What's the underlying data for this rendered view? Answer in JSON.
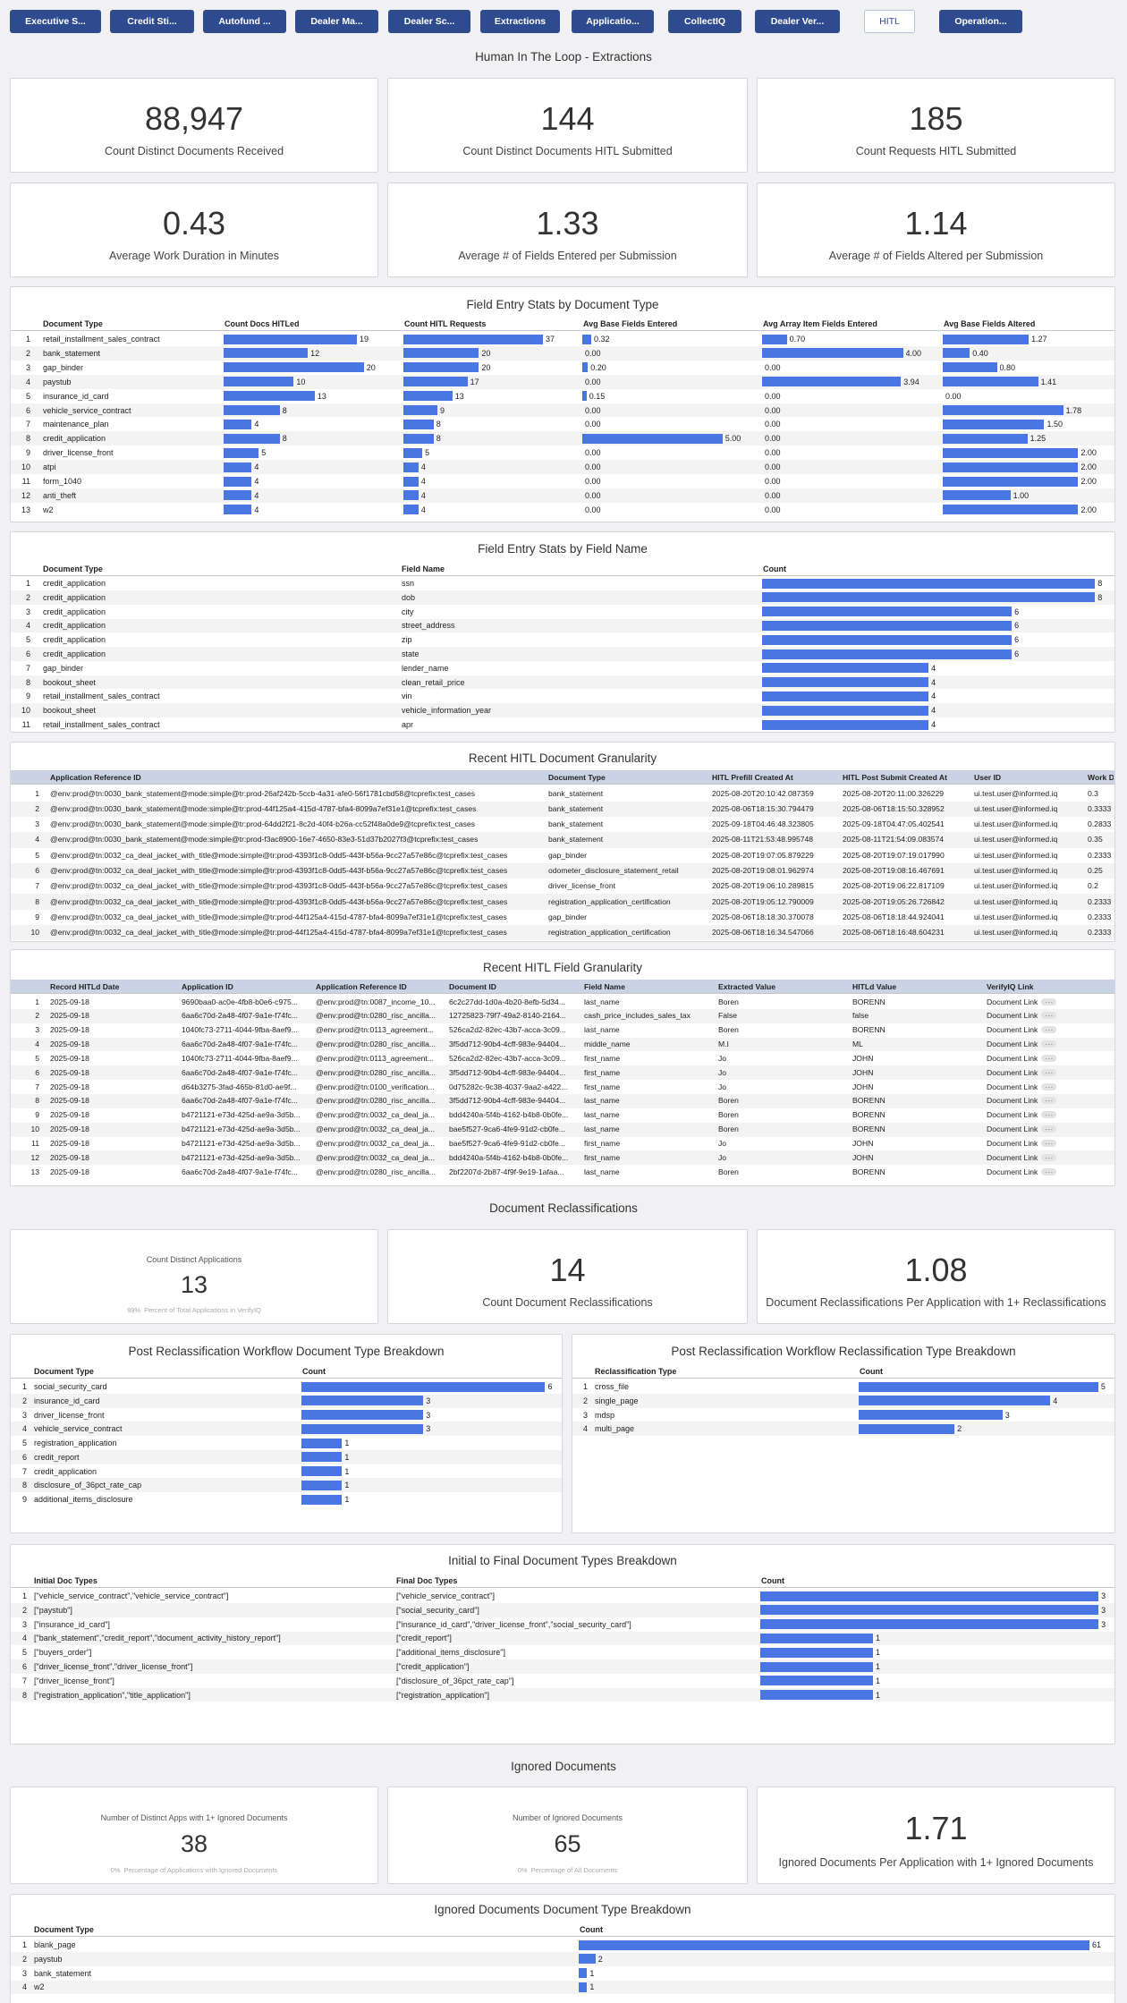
{
  "header": {
    "tabs": [
      "Executive S...",
      "Credit Sti...",
      "Autofund ...",
      "Dealer Ma...",
      "Dealer Sc...",
      "Extractions",
      "Applicatio...",
      "CollectIQ",
      "Dealer Ver...",
      "HITL",
      "Operation..."
    ],
    "active_tab": 9,
    "title": "Human In The Loop - Extractions"
  },
  "extraction_kpis": [
    {
      "value": "88,947",
      "label": "Count Distinct Documents Received"
    },
    {
      "value": "144",
      "label": "Count Distinct Documents HITL Submitted"
    },
    {
      "value": "185",
      "label": "Count Requests HITL Submitted"
    },
    {
      "value": "0.43",
      "label": "Average Work Duration in Minutes"
    },
    {
      "value": "1.33",
      "label": "Average # of Fields Entered per Submission"
    },
    {
      "value": "1.14",
      "label": "Average # of Fields Altered per Submission"
    }
  ],
  "field_entry_by_doc_type": {
    "title": "Field Entry Stats by Document Type",
    "row_numbers": [
      1,
      2,
      3,
      4,
      5,
      6,
      7,
      8,
      9,
      10,
      11,
      12,
      13
    ],
    "columns": [
      {
        "header": "Document Type",
        "values": [
          "retail_installment_sales_contract",
          "bank_statement",
          "gap_binder",
          "paystub",
          "insurance_id_card",
          "vehicle_service_contract",
          "maintenance_plan",
          "credit_application",
          "driver_license_front",
          "atpi",
          "form_1040",
          "anti_theft",
          "w2"
        ]
      },
      {
        "header": "Count Docs HITLed",
        "values": [
          19,
          12,
          20,
          10,
          13,
          8,
          4,
          8,
          5,
          4,
          4,
          4,
          4
        ]
      },
      {
        "header": "Count HITL Requests",
        "values": [
          37,
          20,
          20,
          17,
          13,
          9,
          8,
          8,
          5,
          4,
          4,
          4,
          4
        ]
      },
      {
        "header": "Avg Base Fields Entered",
        "values": [
          0.32,
          0,
          0.2,
          0,
          0.15,
          0,
          0,
          5,
          0,
          0,
          0,
          0,
          0
        ],
        "value_labels": [
          "0.32",
          "0.00",
          "0.20",
          "0.00",
          "0.15",
          "0.00",
          "0.00",
          "5.00",
          "0.00",
          "0.00",
          "0.00",
          "0.00",
          "0.00"
        ]
      },
      {
        "header": "Avg Array Item Fields Entered",
        "values": [
          0.7,
          4,
          0,
          3.94,
          0,
          0,
          0,
          0,
          0,
          0,
          0,
          0,
          0
        ],
        "value_labels": [
          "0.70",
          "4.00",
          "0.00",
          "3.94",
          "0.00",
          "0.00",
          "0.00",
          "0.00",
          "0.00",
          "0.00",
          "0.00",
          "0.00",
          "0.00"
        ]
      },
      {
        "header": "Avg Base Fields Altered",
        "values": [
          1.27,
          0.4,
          0.8,
          1.41,
          0,
          1.78,
          1.5,
          1.25,
          2,
          2,
          2,
          1,
          2
        ],
        "value_labels": [
          "1.27",
          "0.40",
          "0.80",
          "1.41",
          "0.00",
          "1.78",
          "1.50",
          "1.25",
          "2.00",
          "2.00",
          "2.00",
          "1.00",
          "2.00"
        ]
      }
    ]
  },
  "field_entry_by_field_name": {
    "title": "Field Entry Stats by Field Name",
    "row_numbers": [
      1,
      2,
      3,
      4,
      5,
      6,
      7,
      8,
      9,
      10,
      11
    ],
    "columns": [
      {
        "header": "Document Type",
        "values": [
          "credit_application",
          "credit_application",
          "credit_application",
          "credit_application",
          "credit_application",
          "credit_application",
          "gap_binder",
          "bookout_sheet",
          "retail_installment_sales_contract",
          "bookout_sheet",
          "retail_installment_sales_contract"
        ]
      },
      {
        "header": "Field Name",
        "values": [
          "ssn",
          "dob",
          "city",
          "street_address",
          "zip",
          "state",
          "lender_name",
          "clean_retail_price",
          "vin",
          "vehicle_information_year",
          "apr"
        ]
      },
      {
        "header": "Count",
        "values": [
          8,
          8,
          6,
          6,
          6,
          6,
          4,
          4,
          4,
          4,
          4
        ]
      }
    ]
  },
  "recent_document_granularity": {
    "title": "Recent HITL Document Granularity",
    "row_numbers": [
      1,
      2,
      3,
      4,
      5,
      6,
      7,
      8,
      9,
      10
    ],
    "columns": [
      {
        "header": "Application Reference ID",
        "values": [
          "@env:prod@tn:0030_bank_statement@mode:simple@tr:prod-26af242b-5ccb-4a31-afe0-56f1781cbd58@tcprefix:test_cases",
          "@env:prod@tn:0030_bank_statement@mode:simple@tr:prod-44f125a4-415d-4787-bfa4-8099a7ef31e1@tcprefix:test_cases",
          "@env:prod@tn:0030_bank_statement@mode:simple@tr:prod-64dd2f21-8c2d-40f4-b26a-cc52f48a0de9@tcprefix:test_cases",
          "@env:prod@tn:0030_bank_statement@mode:simple@tr:prod-f3ac8900-16e7-4650-83e3-51d37b2027f3@tcprefix:test_cases",
          "@env:prod@tn:0032_ca_deal_jacket_with_title@mode:simple@tr:prod-4393f1c8-0dd5-443f-b56a-9cc27a57e86c@tcprefix:test_cases",
          "@env:prod@tn:0032_ca_deal_jacket_with_title@mode:simple@tr:prod-4393f1c8-0dd5-443f-b56a-9cc27a57e86c@tcprefix:test_cases",
          "@env:prod@tn:0032_ca_deal_jacket_with_title@mode:simple@tr:prod-4393f1c8-0dd5-443f-b56a-9cc27a57e86c@tcprefix:test_cases",
          "@env:prod@tn:0032_ca_deal_jacket_with_title@mode:simple@tr:prod-4393f1c8-0dd5-443f-b56a-9cc27a57e86c@tcprefix:test_cases",
          "@env:prod@tn:0032_ca_deal_jacket_with_title@mode:simple@tr:prod-44f125a4-415d-4787-bfa4-8099a7ef31e1@tcprefix:test_cases",
          "@env:prod@tn:0032_ca_deal_jacket_with_title@mode:simple@tr:prod-44f125a4-415d-4787-bfa4-8099a7ef31e1@tcprefix:test_cases"
        ]
      },
      {
        "header": "Document Type",
        "values": [
          "bank_statement",
          "bank_statement",
          "bank_statement",
          "bank_statement",
          "gap_binder",
          "odometer_disclosure_statement_retail",
          "driver_license_front",
          "registration_application_certification",
          "gap_binder",
          "registration_application_certification"
        ]
      },
      {
        "header": "HITL Prefill Created At",
        "values": [
          "2025-08-20T20:10:42.087359",
          "2025-08-06T18:15:30.794479",
          "2025-09-18T04:46:48.323805",
          "2025-08-11T21:53:48.995748",
          "2025-08-20T19:07:05.879229",
          "2025-08-20T19:08:01.962974",
          "2025-08-20T19:06:10.289815",
          "2025-08-20T19:05:12.790009",
          "2025-08-06T18:18:30.370078",
          "2025-08-06T18:16:34.547066"
        ]
      },
      {
        "header": "HITL Post Submit Created At",
        "values": [
          "2025-08-20T20:11:00.326229",
          "2025-08-06T18:15:50.328952",
          "2025-09-18T04:47:05.402541",
          "2025-08-11T21:54:09.083574",
          "2025-08-20T19:07:19.017990",
          "2025-08-20T19:08:16.467691",
          "2025-08-20T19:06:22.817109",
          "2025-08-20T19:05:26.726842",
          "2025-08-06T18:18:44.924041",
          "2025-08-06T18:16:48.604231"
        ]
      },
      {
        "header": "User ID",
        "values": [
          "ui.test.user@informed.iq",
          "ui.test.user@informed.iq",
          "ui.test.user@informed.iq",
          "ui.test.user@informed.iq",
          "ui.test.user@informed.iq",
          "ui.test.user@informed.iq",
          "ui.test.user@informed.iq",
          "ui.test.user@informed.iq",
          "ui.test.user@informed.iq",
          "ui.test.user@informed.iq"
        ]
      },
      {
        "header": "Work Du",
        "values": [
          "0.3",
          "0.3333",
          "0.2833",
          "0.35",
          "0.2333",
          "0.25",
          "0.2",
          "0.2333",
          "0.2333",
          "0.2333"
        ]
      }
    ]
  },
  "recent_field_granularity": {
    "title": "Recent HITL Field Granularity",
    "row_numbers": [
      1,
      2,
      3,
      4,
      5,
      6,
      7,
      8,
      9,
      10,
      11,
      12,
      13
    ],
    "columns": [
      {
        "header": "Record HITLd Date",
        "values": [
          "2025-09-18",
          "2025-09-18",
          "2025-09-18",
          "2025-09-18",
          "2025-09-18",
          "2025-09-18",
          "2025-09-18",
          "2025-09-18",
          "2025-09-18",
          "2025-09-18",
          "2025-09-18",
          "2025-09-18",
          "2025-09-18"
        ]
      },
      {
        "header": "Application ID",
        "values": [
          "9690baa0-ac0e-4fb8-b0e6-c975...",
          "6aa6c70d-2a48-4f07-9a1e-f74fc...",
          "1040fc73-2711-4044-9fba-8aef9...",
          "6aa6c70d-2a48-4f07-9a1e-f74fc...",
          "1040fc73-2711-4044-9fba-8aef9...",
          "6aa6c70d-2a48-4f07-9a1e-f74fc...",
          "d64b3275-3fad-465b-81d0-ae9f...",
          "6aa6c70d-2a48-4f07-9a1e-f74fc...",
          "b4721121-e73d-425d-ae9a-3d5b...",
          "b4721121-e73d-425d-ae9a-3d5b...",
          "b4721121-e73d-425d-ae9a-3d5b...",
          "b4721121-e73d-425d-ae9a-3d5b...",
          "6aa6c70d-2a48-4f07-9a1e-f74fc..."
        ]
      },
      {
        "header": "Application Reference ID",
        "values": [
          "@env:prod@tn:0087_income_10...",
          "@env:prod@tn:0280_risc_ancilla...",
          "@env:prod@tn:0113_agreement...",
          "@env:prod@tn:0280_risc_ancilla...",
          "@env:prod@tn:0113_agreement...",
          "@env:prod@tn:0280_risc_ancilla...",
          "@env:prod@tn:0100_verification...",
          "@env:prod@tn:0280_risc_ancilla...",
          "@env:prod@tn:0032_ca_deal_ja...",
          "@env:prod@tn:0032_ca_deal_ja...",
          "@env:prod@tn:0032_ca_deal_ja...",
          "@env:prod@tn:0032_ca_deal_ja...",
          "@env:prod@tn:0280_risc_ancilla..."
        ]
      },
      {
        "header": "Document ID",
        "values": [
          "6c2c27dd-1d0a-4b20-8efb-5d34...",
          "12725823-79f7-49a2-8140-2164...",
          "526ca2d2-82ec-43b7-acca-3c09...",
          "3f5dd712-90b4-4cff-983e-94404...",
          "526ca2d2-82ec-43b7-acca-3c09...",
          "3f5dd712-90b4-4cff-983e-94404...",
          "0d75282c-9c38-4037-9aa2-a422...",
          "3f5dd712-90b4-4cff-983e-94404...",
          "bdd4240a-5f4b-4162-b4b8-0b0fe...",
          "bae5f527-9ca6-4fe9-91d2-cb0fe...",
          "bae5f527-9ca6-4fe9-91d2-cb0fe...",
          "bdd4240a-5f4b-4162-b4b8-0b0fe...",
          "2bf2207d-2b87-4f9f-9e19-1afaa..."
        ]
      },
      {
        "header": "Field Name",
        "values": [
          "last_name",
          "cash_price_includes_sales_tax",
          "last_name",
          "middle_name",
          "first_name",
          "first_name",
          "first_name",
          "last_name",
          "last_name",
          "last_name",
          "first_name",
          "first_name",
          "last_name"
        ]
      },
      {
        "header": "Extracted Value",
        "values": [
          "Boren",
          "False",
          "Boren",
          "M.I",
          "Jo",
          "Jo",
          "Jo",
          "Boren",
          "Boren",
          "Boren",
          "Jo",
          "Jo",
          "Boren"
        ]
      },
      {
        "header": "HITLd Value",
        "values": [
          "BORENN",
          "false",
          "BORENN",
          "ML",
          "JOHN",
          "JOHN",
          "JOHN",
          "BORENN",
          "BORENN",
          "BORENN",
          "JOHN",
          "JOHN",
          "BORENN"
        ]
      },
      {
        "header": "VerifyIQ Link",
        "values": [
          "Document Link",
          "Document Link",
          "Document Link",
          "Document Link",
          "Document Link",
          "Document Link",
          "Document Link",
          "Document Link",
          "Document Link",
          "Document Link",
          "Document Link",
          "Document Link",
          "Document Link"
        ]
      }
    ]
  },
  "reclassifications": {
    "title": "Document Reclassifications",
    "kpis": [
      {
        "caption": "Count Distinct Applications",
        "value": "13",
        "note_value": "99%",
        "note": "Percent of Total Applications in VerifyIQ"
      },
      {
        "value": "14",
        "label": "Count Document Reclassifications"
      },
      {
        "value": "1.08",
        "label": "Document Reclassifications Per Application with 1+ Reclassifications"
      }
    ],
    "doc_type_breakdown": {
      "title": "Post Reclassification Workflow Document Type Breakdown",
      "row_numbers": [
        1,
        2,
        3,
        4,
        5,
        6,
        7,
        8,
        9
      ],
      "columns": [
        {
          "header": "Document Type",
          "values": [
            "social_security_card",
            "insurance_id_card",
            "driver_license_front",
            "vehicle_service_contract",
            "registration_application",
            "credit_report",
            "credit_application",
            "disclosure_of_36pct_rate_cap",
            "additional_items_disclosure"
          ]
        },
        {
          "header": "Count",
          "values": [
            6,
            3,
            3,
            3,
            1,
            1,
            1,
            1,
            1
          ]
        }
      ]
    },
    "reclass_type_breakdown": {
      "title": "Post Reclassification Workflow Reclassification Type Breakdown",
      "row_numbers": [
        1,
        2,
        3,
        4
      ],
      "columns": [
        {
          "header": "Reclassification Type",
          "values": [
            "cross_file",
            "single_page",
            "mdsp",
            "multi_page"
          ]
        },
        {
          "header": "Count",
          "values": [
            5,
            4,
            3,
            2
          ]
        }
      ]
    },
    "initial_to_final": {
      "title": "Initial to Final Document Types Breakdown",
      "row_numbers": [
        1,
        2,
        3,
        4,
        5,
        6,
        7,
        8
      ],
      "columns": [
        {
          "header": "Initial Doc Types",
          "values": [
            "[\"vehicle_service_contract\",\"vehicle_service_contract\"]",
            "[\"paystub\"]",
            "[\"insurance_id_card\"]",
            "[\"bank_statement\",\"credit_report\",\"document_activity_history_report\"]",
            "[\"buyers_order\"]",
            "[\"driver_license_front\",\"driver_license_front\"]",
            "[\"driver_license_front\"]",
            "[\"registration_application\",\"title_application\"]"
          ]
        },
        {
          "header": "Final Doc Types",
          "values": [
            "[\"vehicle_service_contract\"]",
            "[\"social_security_card\"]",
            "[\"insurance_id_card\",\"driver_license_front\",\"social_security_card\"]",
            "[\"credit_report\"]",
            "[\"additional_items_disclosure\"]",
            "[\"credit_application\"]",
            "[\"disclosure_of_36pct_rate_cap\"]",
            "[\"registration_application\"]"
          ]
        },
        {
          "header": "Count",
          "values": [
            3,
            3,
            3,
            1,
            1,
            1,
            1,
            1
          ]
        }
      ]
    }
  },
  "ignored": {
    "title": "Ignored Documents",
    "kpis": [
      {
        "caption": "Number of Distinct Apps with 1+ Ignored Documents",
        "value": "38",
        "note_value": "0%",
        "note": "Percentage of Applications with Ignored Documents"
      },
      {
        "caption": "Number of Ignored Documents",
        "value": "65",
        "note_value": "0%",
        "note": "Percentage of All Documents"
      },
      {
        "value": "1.71",
        "label": "Ignored Documents Per Application with 1+ Ignored Documents"
      }
    ],
    "doc_type_breakdown": {
      "title": "Ignored Documents Document Type Breakdown",
      "row_numbers": [
        1,
        2,
        3,
        4
      ],
      "columns": [
        {
          "header": "Document Type",
          "values": [
            "blank_page",
            "paystub",
            "bank_statement",
            "w2"
          ]
        },
        {
          "header": "Count",
          "values": [
            61,
            2,
            1,
            1
          ]
        }
      ]
    }
  }
}
